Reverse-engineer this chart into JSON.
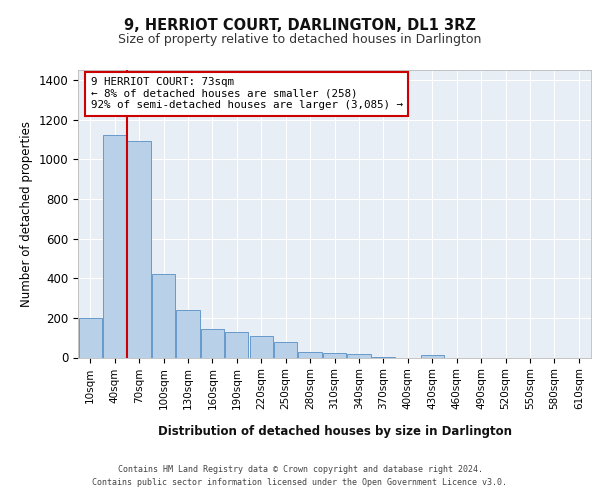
{
  "title1": "9, HERRIOT COURT, DARLINGTON, DL1 3RZ",
  "title2": "Size of property relative to detached houses in Darlington",
  "xlabel": "Distribution of detached houses by size in Darlington",
  "ylabel": "Number of detached properties",
  "bar_labels": [
    "10sqm",
    "40sqm",
    "70sqm",
    "100sqm",
    "130sqm",
    "160sqm",
    "190sqm",
    "220sqm",
    "250sqm",
    "280sqm",
    "310sqm",
    "340sqm",
    "370sqm",
    "400sqm",
    "430sqm",
    "460sqm",
    "490sqm",
    "520sqm",
    "550sqm",
    "580sqm",
    "610sqm"
  ],
  "bar_values": [
    200,
    1120,
    1090,
    420,
    240,
    145,
    130,
    110,
    80,
    30,
    25,
    20,
    5,
    0,
    15,
    0,
    0,
    0,
    0,
    0,
    0
  ],
  "bar_color": "#b8d0e8",
  "bar_edge_color": "#6699cc",
  "bg_color": "#e8eef5",
  "vline_color": "#cc0000",
  "vline_x": 1.5,
  "ylim_max": 1450,
  "yticks": [
    0,
    200,
    400,
    600,
    800,
    1000,
    1200,
    1400
  ],
  "ann_line1": "9 HERRIOT COURT: 73sqm",
  "ann_line2": "← 8% of detached houses are smaller (258)",
  "ann_line3": "92% of semi-detached houses are larger (3,085) →",
  "ann_box_color": "#ffffff",
  "ann_box_edge": "#cc0000",
  "footer1": "Contains HM Land Registry data © Crown copyright and database right 2024.",
  "footer2": "Contains public sector information licensed under the Open Government Licence v3.0."
}
